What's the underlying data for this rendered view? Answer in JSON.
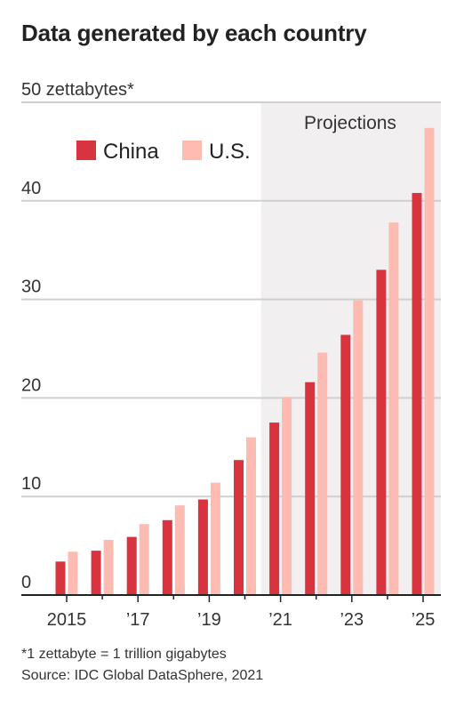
{
  "chart_data": {
    "type": "bar",
    "title": "Data generated by each country",
    "ylabel": "zettabytes*",
    "xlabel": "",
    "x": [
      2015,
      2016,
      2017,
      2018,
      2019,
      2020,
      2021,
      2022,
      2023,
      2024,
      2025
    ],
    "x_tick_labels": [
      {
        "x": 2015,
        "label": "2015"
      },
      {
        "x": 2017,
        "label": "’17"
      },
      {
        "x": 2019,
        "label": "’19"
      },
      {
        "x": 2021,
        "label": "’21"
      },
      {
        "x": 2023,
        "label": "’23"
      },
      {
        "x": 2025,
        "label": "’25"
      }
    ],
    "y_ticks": [
      {
        "value": 0,
        "label": "0"
      },
      {
        "value": 10,
        "label": "10"
      },
      {
        "value": 20,
        "label": "20"
      },
      {
        "value": 30,
        "label": "30"
      },
      {
        "value": 40,
        "label": "40"
      },
      {
        "value": 50,
        "label": "50 zettabytes*"
      }
    ],
    "ylim": [
      0,
      50
    ],
    "grid": true,
    "legend_placement": "top-left",
    "series": [
      {
        "name": "China",
        "color": "#d7343f",
        "values": [
          3.4,
          4.5,
          5.9,
          7.6,
          9.7,
          13.7,
          17.5,
          21.6,
          26.4,
          33.0,
          40.8
        ]
      },
      {
        "name": "U.S.",
        "color": "#fdbbb1",
        "values": [
          4.4,
          5.6,
          7.2,
          9.1,
          11.4,
          16.0,
          20.1,
          24.6,
          29.9,
          37.8,
          47.4
        ]
      }
    ],
    "shaded_region": {
      "label": "Projections",
      "from": 2021,
      "to": 2025,
      "color": "#f2eff0"
    }
  },
  "notes": {
    "footnote": "*1 zettabyte = 1 trillion gigabytes",
    "source": "Source: IDC Global DataSphere, 2021"
  }
}
